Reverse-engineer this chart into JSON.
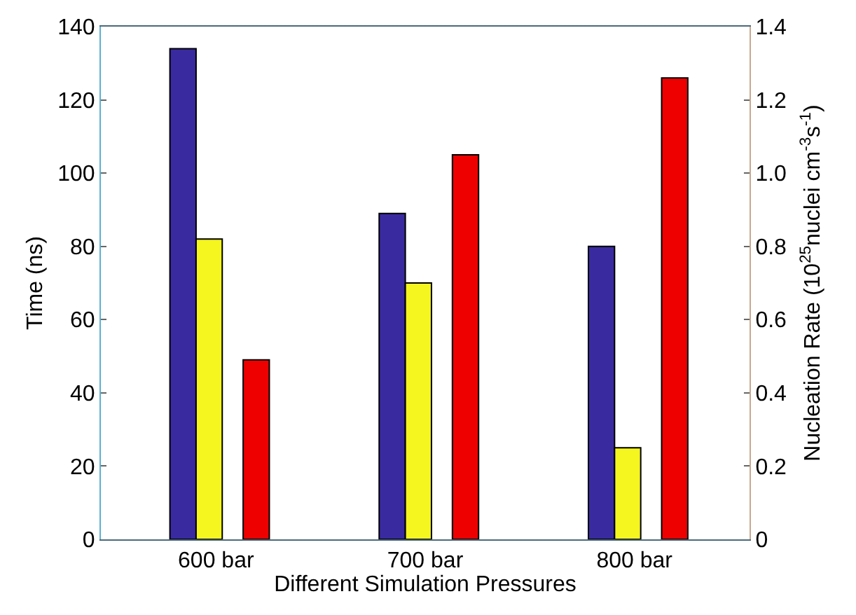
{
  "chart_data": {
    "type": "bar",
    "xlabel": "Different Simulation Pressures",
    "ylabel": "Time (ns)",
    "y2label": "Nucleation Rate (10$^{25}$nuclei cm$^{-3}$s$^{-1}$)",
    "categories": [
      "600 bar",
      "700 bar",
      "800 bar"
    ],
    "series": [
      {
        "color": "#3a2aa0",
        "values": [
          134,
          89,
          80
        ]
      },
      {
        "color": "#f5f520",
        "values": [
          82,
          70,
          25
        ]
      },
      {
        "color": "#ee0000",
        "values": [
          0.49,
          1.05,
          1.26
        ],
        "axis": "y2"
      }
    ],
    "ylim": [
      0,
      140
    ],
    "yticks": [
      0,
      20,
      40,
      60,
      80,
      100,
      120,
      140
    ],
    "y2lim": [
      0,
      1.4
    ],
    "y2ticks": [
      0,
      {
        "value": 0.2,
        "label": "0.2"
      },
      {
        "value": 0.4,
        "label": "0.4"
      },
      {
        "value": 0.6,
        "label": "0.6"
      },
      {
        "value": 0.8,
        "label": "0.8"
      },
      {
        "value": 1.0,
        "label": "1.0"
      },
      {
        "value": 1.2,
        "label": "1.2"
      },
      {
        "value": 1.4,
        "label": "1.4"
      }
    ],
    "grid": false
  }
}
